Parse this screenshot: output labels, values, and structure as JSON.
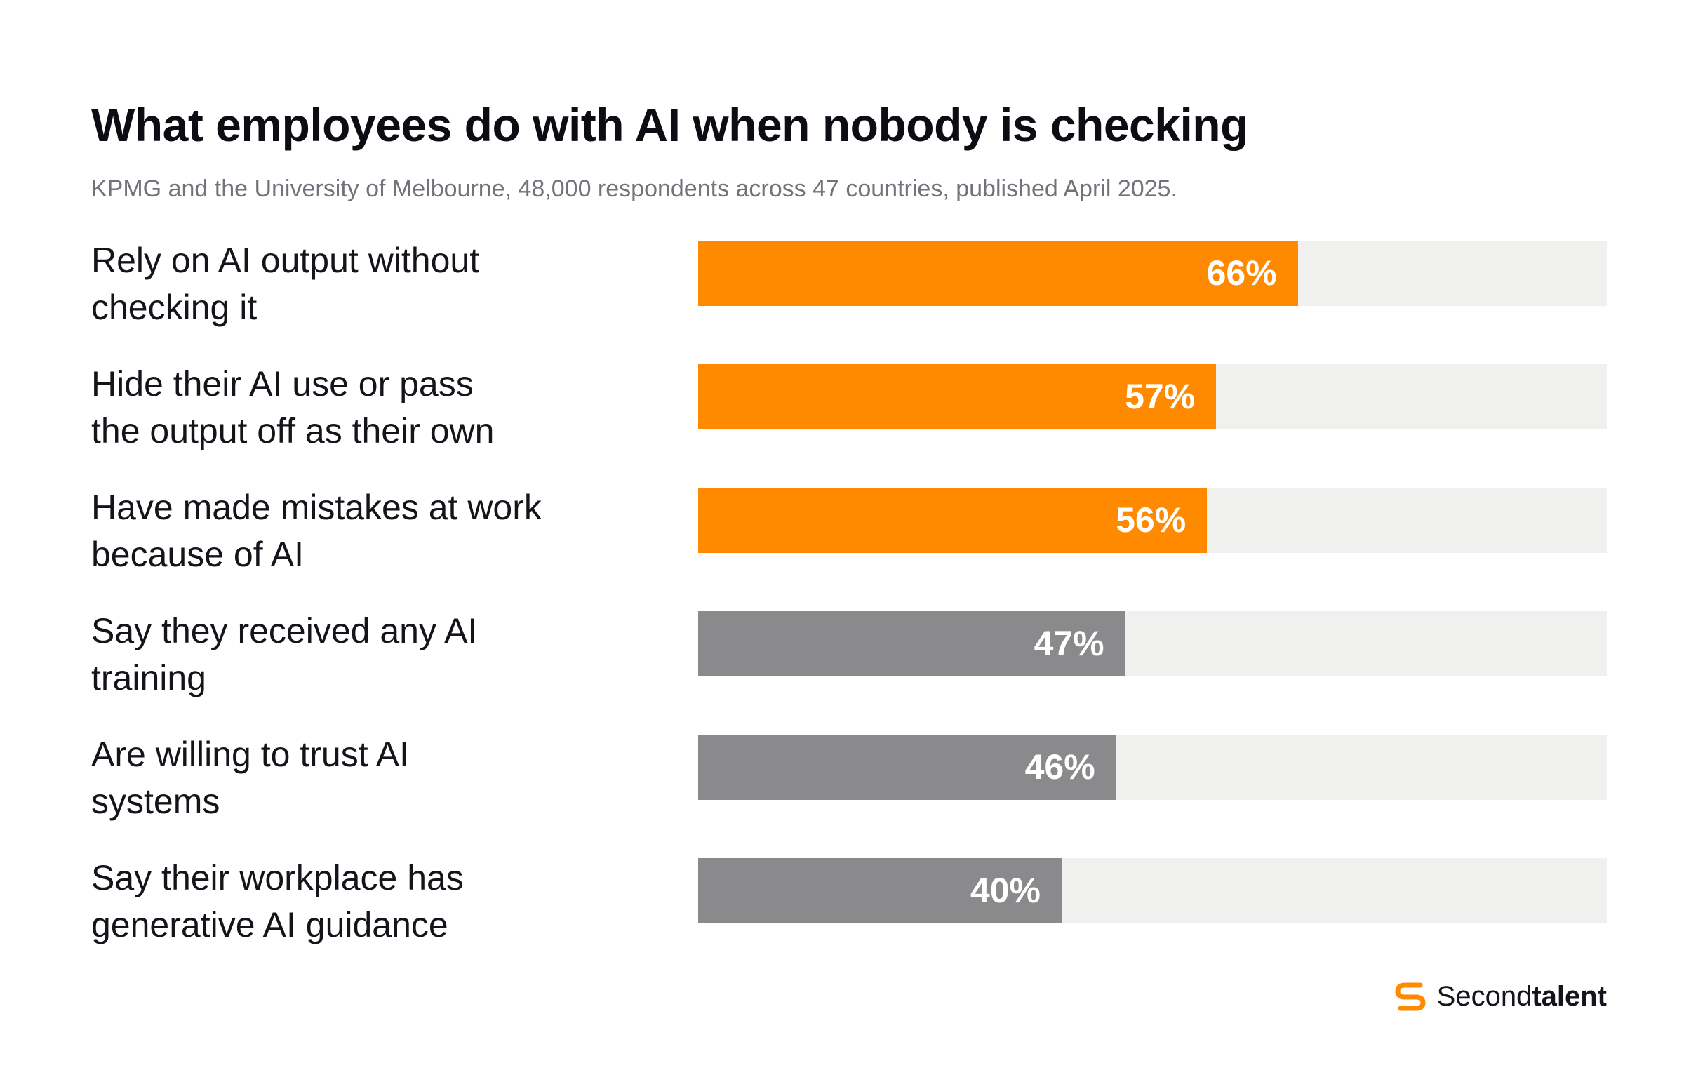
{
  "chart_data": {
    "type": "bar",
    "orientation": "horizontal",
    "title": "What employees do with AI when nobody is checking",
    "subtitle": "KPMG and the University of Melbourne, 48,000 respondents across 47 countries, published April 2025.",
    "xlim": [
      0,
      100
    ],
    "grid": false,
    "categories": [
      "Rely on AI output without checking it",
      "Hide their AI use or pass the output off as their own",
      "Have made mistakes at work because of AI",
      "Say they received any AI training",
      "Are willing to trust AI systems",
      "Say their workplace has generative AI guidance"
    ],
    "category_lines": [
      [
        "Rely on AI output without",
        "checking it"
      ],
      [
        "Hide their AI use or pass",
        "the output off as their own"
      ],
      [
        "Have made mistakes at work",
        "because of AI"
      ],
      [
        "Say they received any AI",
        "training"
      ],
      [
        "Are willing to trust AI",
        "systems"
      ],
      [
        "Say their workplace has",
        "generative AI guidance"
      ]
    ],
    "values": [
      66,
      57,
      56,
      47,
      46,
      40
    ],
    "value_labels": [
      "66%",
      "57%",
      "56%",
      "47%",
      "46%",
      "40%"
    ],
    "bar_colors": [
      "#ff8a00",
      "#ff8a00",
      "#ff8a00",
      "#8a8a8d",
      "#8a8a8d",
      "#8a8a8d"
    ],
    "track_color": "#f0f0ee"
  },
  "brand": {
    "name_regular": "Second",
    "name_bold": "talent",
    "icon": "secondtalent-s-logo-icon",
    "color": "#ff8a00"
  }
}
